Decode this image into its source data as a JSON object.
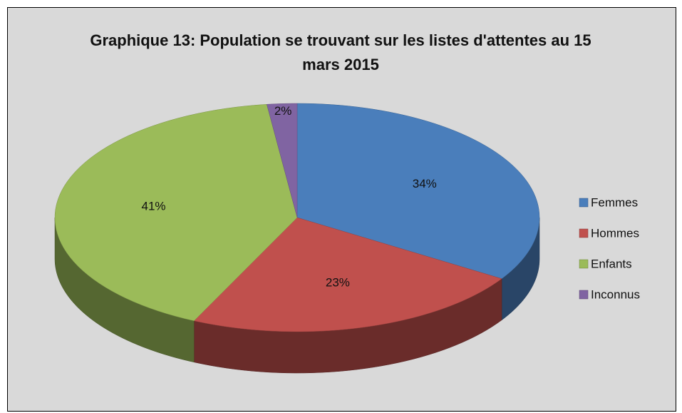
{
  "chart_data": {
    "type": "pie",
    "title": "Graphique 13: Population se trouvant sur les listes d'attentes au 15 mars 2015",
    "categories": [
      "Femmes",
      "Hommes",
      "Enfants",
      "Inconnus"
    ],
    "values": [
      34,
      23,
      41,
      2
    ],
    "value_labels": [
      "34%",
      "23%",
      "41%",
      "2%"
    ],
    "colors": [
      "#4a7ebb",
      "#c0504d",
      "#9bbb59",
      "#8064a2"
    ],
    "legend": "right"
  }
}
